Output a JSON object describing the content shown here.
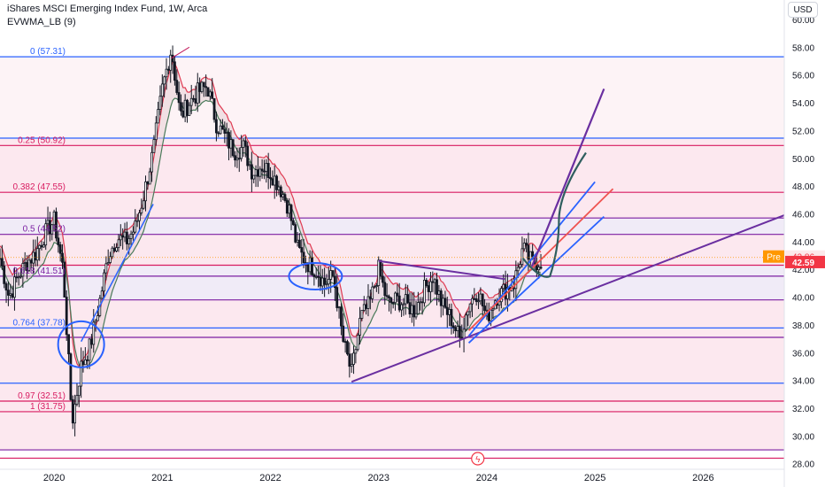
{
  "header": {
    "title": "iShares MSCI Emerging Index Fund, 1W, Arca",
    "indicator": "EVWMA_LB (9)"
  },
  "currency_button": "USD",
  "price_scale": {
    "ticks": [
      "60.00",
      "58.00",
      "56.00",
      "54.00",
      "52.00",
      "50.00",
      "48.00",
      "46.00",
      "44.00",
      "42.00",
      "40.00",
      "38.00",
      "36.00",
      "34.00",
      "32.00",
      "30.00",
      "28.00"
    ]
  },
  "time_scale": {
    "ticks": [
      "2020",
      "2021",
      "2022",
      "2023",
      "2024",
      "2025",
      "2026"
    ]
  },
  "price_labels": {
    "pre_label": "Pre",
    "pre_value": "42.86",
    "last_value": "42.59"
  },
  "colors": {
    "pink_band": "#fce4ec",
    "purple_band": "#ede7f6",
    "candle": "#131722",
    "evwma_upper": "#e03a52",
    "evwma_lower": "#4a7a5a",
    "fib_blue": "#2962ff",
    "fib_pink": "#d81b60",
    "fib_purple": "#7b1fa2",
    "trend_purple": "#6a2fa0",
    "channel_blue": "#2962ff",
    "channel_red": "#ef5350",
    "path_teal": "#2e5e5e",
    "price_label_red": "#f23645",
    "price_label_pre": "#ff9800"
  },
  "chart_data": {
    "type": "candlestick",
    "title": "iShares MSCI Emerging Index Fund, 1W, Arca",
    "xlabel": "",
    "ylabel": "",
    "ylim": [
      27.6,
      61.4
    ],
    "x_range": [
      "2019-07",
      "2026-10"
    ],
    "grid": false,
    "price_series": [
      {
        "date": "2019-07",
        "price": 42.8
      },
      {
        "date": "2019-08",
        "price": 40.0
      },
      {
        "date": "2019-09",
        "price": 41.5
      },
      {
        "date": "2019-10",
        "price": 42.5
      },
      {
        "date": "2019-11",
        "price": 43.2
      },
      {
        "date": "2019-12",
        "price": 44.6
      },
      {
        "date": "2020-01",
        "price": 45.5
      },
      {
        "date": "2020-02",
        "price": 42.0
      },
      {
        "date": "2020-03",
        "price": 31.0
      },
      {
        "date": "2020-04",
        "price": 35.0
      },
      {
        "date": "2020-05",
        "price": 36.5
      },
      {
        "date": "2020-06",
        "price": 39.5
      },
      {
        "date": "2020-07",
        "price": 43.0
      },
      {
        "date": "2020-08",
        "price": 44.3
      },
      {
        "date": "2020-09",
        "price": 44.0
      },
      {
        "date": "2020-10",
        "price": 45.0
      },
      {
        "date": "2020-11",
        "price": 47.5
      },
      {
        "date": "2020-12",
        "price": 50.5
      },
      {
        "date": "2021-01",
        "price": 55.0
      },
      {
        "date": "2021-02",
        "price": 57.9
      },
      {
        "date": "2021-03",
        "price": 53.0
      },
      {
        "date": "2021-04",
        "price": 54.0
      },
      {
        "date": "2021-05",
        "price": 54.8
      },
      {
        "date": "2021-06",
        "price": 55.2
      },
      {
        "date": "2021-07",
        "price": 52.5
      },
      {
        "date": "2021-08",
        "price": 51.5
      },
      {
        "date": "2021-09",
        "price": 50.5
      },
      {
        "date": "2021-10",
        "price": 50.8
      },
      {
        "date": "2021-11",
        "price": 49.0
      },
      {
        "date": "2021-12",
        "price": 49.5
      },
      {
        "date": "2022-01",
        "price": 49.0
      },
      {
        "date": "2022-02",
        "price": 48.0
      },
      {
        "date": "2022-03",
        "price": 46.5
      },
      {
        "date": "2022-04",
        "price": 43.5
      },
      {
        "date": "2022-05",
        "price": 42.5
      },
      {
        "date": "2022-06",
        "price": 42.0
      },
      {
        "date": "2022-07",
        "price": 41.0
      },
      {
        "date": "2022-08",
        "price": 41.5
      },
      {
        "date": "2022-09",
        "price": 37.0
      },
      {
        "date": "2022-10",
        "price": 34.5
      },
      {
        "date": "2022-11",
        "price": 38.5
      },
      {
        "date": "2022-12",
        "price": 39.5
      },
      {
        "date": "2023-01",
        "price": 42.0
      },
      {
        "date": "2023-02",
        "price": 39.5
      },
      {
        "date": "2023-03",
        "price": 39.8
      },
      {
        "date": "2023-04",
        "price": 39.5
      },
      {
        "date": "2023-05",
        "price": 39.0
      },
      {
        "date": "2023-06",
        "price": 40.5
      },
      {
        "date": "2023-07",
        "price": 41.5
      },
      {
        "date": "2023-08",
        "price": 39.5
      },
      {
        "date": "2023-09",
        "price": 38.5
      },
      {
        "date": "2023-10",
        "price": 37.0
      },
      {
        "date": "2023-11",
        "price": 39.5
      },
      {
        "date": "2023-12",
        "price": 40.5
      },
      {
        "date": "2024-01",
        "price": 38.5
      },
      {
        "date": "2024-02",
        "price": 40.0
      },
      {
        "date": "2024-03",
        "price": 40.5
      },
      {
        "date": "2024-04",
        "price": 41.0
      },
      {
        "date": "2024-05",
        "price": 43.5
      },
      {
        "date": "2024-06",
        "price": 42.5
      },
      {
        "date": "2024-07",
        "price": 42.59
      }
    ],
    "fib_levels": [
      {
        "ratio": "0",
        "price": 57.31,
        "label": "0 (57.31)",
        "color": "fib_blue"
      },
      {
        "ratio": "0.25",
        "price": 50.92,
        "label": "0.25 (50.92)",
        "color": "fib_pink"
      },
      {
        "ratio": "0.382",
        "price": 47.55,
        "label": "0.382 (47.55)",
        "color": "fib_pink"
      },
      {
        "ratio": "0.5",
        "price": 44.52,
        "label": "0.5 (44.52)",
        "color": "fib_purple"
      },
      {
        "ratio": "0.618",
        "price": 41.51,
        "label": "0.618 (41.51)",
        "color": "fib_purple"
      },
      {
        "ratio": "0.764",
        "price": 37.78,
        "label": "0.764 (37.78)",
        "color": "fib_blue"
      },
      {
        "ratio": "0.97",
        "price": 32.51,
        "label": "0.97 (32.51)",
        "color": "fib_pink"
      },
      {
        "ratio": "1",
        "price": 31.75,
        "label": "1 (31.75)",
        "color": "fib_pink"
      }
    ],
    "extra_levels": [
      51.45,
      45.7,
      42.3,
      39.8,
      37.1,
      33.8,
      29.0,
      28.4
    ],
    "last_price": 42.59,
    "pre_market_price": 42.86
  }
}
